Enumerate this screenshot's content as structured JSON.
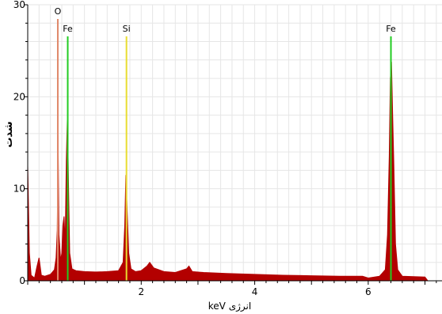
{
  "chart_data": {
    "type": "area",
    "title": "",
    "xlabel": "keV انرژی",
    "ylabel": "شدت",
    "xlim": [
      0.0,
      7.3
    ],
    "ylim": [
      0,
      30
    ],
    "x_ticks": [
      2,
      4,
      6
    ],
    "y_ticks": [
      0,
      10,
      20,
      30
    ],
    "grid": true,
    "series": [
      {
        "color": "#b30000",
        "points": [
          [
            0.0,
            12.5
          ],
          [
            0.03,
            3.0
          ],
          [
            0.06,
            0.6
          ],
          [
            0.12,
            0.3
          ],
          [
            0.16,
            1.5
          ],
          [
            0.2,
            2.5
          ],
          [
            0.24,
            0.6
          ],
          [
            0.3,
            0.5
          ],
          [
            0.4,
            0.7
          ],
          [
            0.47,
            1.2
          ],
          [
            0.5,
            2.5
          ],
          [
            0.52,
            5.5
          ],
          [
            0.535,
            15.8
          ],
          [
            0.55,
            5.0
          ],
          [
            0.58,
            2.2
          ],
          [
            0.6,
            3.0
          ],
          [
            0.62,
            6.0
          ],
          [
            0.64,
            7.0
          ],
          [
            0.66,
            4.0
          ],
          [
            0.68,
            13.0
          ],
          [
            0.7,
            18.2
          ],
          [
            0.72,
            10.0
          ],
          [
            0.74,
            3.0
          ],
          [
            0.78,
            1.3
          ],
          [
            0.85,
            1.1
          ],
          [
            1.0,
            1.0
          ],
          [
            1.2,
            0.95
          ],
          [
            1.4,
            1.0
          ],
          [
            1.6,
            1.1
          ],
          [
            1.68,
            2.0
          ],
          [
            1.71,
            6.0
          ],
          [
            1.73,
            11.5
          ],
          [
            1.75,
            8.0
          ],
          [
            1.78,
            3.0
          ],
          [
            1.82,
            1.3
          ],
          [
            1.9,
            1.0
          ],
          [
            2.0,
            1.1
          ],
          [
            2.1,
            1.6
          ],
          [
            2.15,
            2.0
          ],
          [
            2.22,
            1.4
          ],
          [
            2.4,
            1.0
          ],
          [
            2.6,
            0.9
          ],
          [
            2.8,
            1.3
          ],
          [
            2.84,
            1.6
          ],
          [
            2.9,
            1.0
          ],
          [
            3.1,
            0.9
          ],
          [
            3.5,
            0.8
          ],
          [
            4.0,
            0.7
          ],
          [
            4.5,
            0.6
          ],
          [
            5.0,
            0.55
          ],
          [
            5.5,
            0.5
          ],
          [
            5.9,
            0.5
          ],
          [
            6.0,
            0.3
          ],
          [
            6.2,
            0.5
          ],
          [
            6.3,
            1.2
          ],
          [
            6.34,
            5.0
          ],
          [
            6.37,
            13.5
          ],
          [
            6.39,
            22.0
          ],
          [
            6.41,
            23.8
          ],
          [
            6.43,
            18.0
          ],
          [
            6.45,
            13.0
          ],
          [
            6.48,
            4.0
          ],
          [
            6.52,
            1.2
          ],
          [
            6.6,
            0.5
          ],
          [
            7.0,
            0.4
          ],
          [
            7.05,
            0.0
          ],
          [
            7.3,
            0.0
          ]
        ]
      }
    ],
    "annotations": [
      {
        "label": "O",
        "x": 0.53,
        "color": "#e0886a"
      },
      {
        "label": "Fe",
        "x": 0.705,
        "color": "#22cc22"
      },
      {
        "label": "Si",
        "x": 1.74,
        "color": "#e8dc30"
      },
      {
        "label": "Fe",
        "x": 6.4,
        "color": "#22cc22"
      }
    ]
  }
}
